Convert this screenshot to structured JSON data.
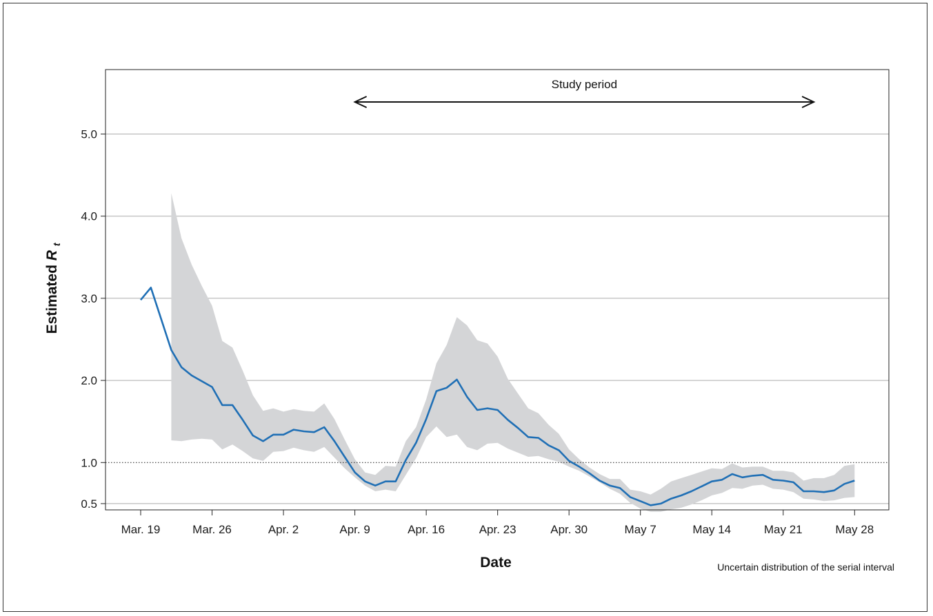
{
  "chart_data": {
    "type": "line",
    "xlabel": "Date",
    "ylabel": "Estimated",
    "ylabel_symbol": "R",
    "ylabel_subscript": "t",
    "x_start": "2020-03-19",
    "x_ticks": [
      "Mar. 19",
      "Mar. 26",
      "Apr. 2",
      "Apr. 9",
      "Apr. 16",
      "Apr. 23",
      "Apr. 30",
      "May 7",
      "May 14",
      "May 21",
      "May 28"
    ],
    "y_ticks": [
      "0.5",
      "1.0",
      "2.0",
      "3.0",
      "4.0",
      "5.0"
    ],
    "y_breaks_data": [
      0.5,
      1,
      2,
      3,
      4,
      5
    ],
    "ylim": [
      0,
      5.5
    ],
    "reference_line": 1.0,
    "grid": "horizontal",
    "annotation": {
      "label": "Study period",
      "from": "2020-04-09",
      "to": "2020-05-24"
    },
    "footnote": "Uncertain distribution of the serial interval",
    "colors": {
      "line": "#1f6fb5",
      "band": "#d4d5d7",
      "grid": "#aaaaaa",
      "reference": "#333333"
    },
    "series": [
      {
        "values": [
          2.98,
          3.13,
          2.75,
          2.37,
          2.16,
          2.06,
          1.99,
          1.92,
          1.7,
          1.7,
          1.52,
          1.33,
          1.26,
          1.34,
          1.34,
          1.4,
          1.38,
          1.37,
          1.43,
          1.26,
          1.07,
          0.88,
          0.77,
          0.72,
          0.77,
          0.77,
          1.03,
          1.24,
          1.53,
          1.87,
          1.91,
          2.01,
          1.8,
          1.64,
          1.66,
          1.64,
          1.52,
          1.42,
          1.31,
          1.3,
          1.21,
          1.15,
          1.02,
          0.95,
          0.87,
          0.78,
          0.72,
          0.69,
          0.58,
          0.53,
          0.48,
          0.5,
          0.56,
          0.6,
          0.65,
          0.71,
          0.77,
          0.79,
          0.86,
          0.82,
          0.84,
          0.85,
          0.79,
          0.78,
          0.76,
          0.65,
          0.65,
          0.64,
          0.66,
          0.74,
          0.78
        ],
        "lower": [
          null,
          null,
          null,
          1.27,
          1.26,
          1.28,
          1.29,
          1.28,
          1.16,
          1.22,
          1.14,
          1.05,
          1.02,
          1.13,
          1.14,
          1.18,
          1.15,
          1.13,
          1.19,
          1.06,
          0.93,
          0.82,
          0.72,
          0.65,
          0.67,
          0.65,
          0.85,
          1.05,
          1.31,
          1.44,
          1.31,
          1.34,
          1.19,
          1.15,
          1.23,
          1.24,
          1.17,
          1.12,
          1.07,
          1.08,
          1.04,
          1.01,
          0.95,
          0.9,
          0.83,
          0.76,
          0.68,
          0.62,
          0.51,
          0.44,
          0.4,
          0.4,
          0.43,
          0.45,
          0.49,
          0.54,
          0.6,
          0.63,
          0.69,
          0.68,
          0.72,
          0.73,
          0.68,
          0.67,
          0.64,
          0.56,
          0.55,
          0.53,
          0.54,
          0.57,
          0.58
        ],
        "upper": [
          null,
          null,
          null,
          4.28,
          3.73,
          3.41,
          3.15,
          2.91,
          2.48,
          2.4,
          2.12,
          1.82,
          1.63,
          1.66,
          1.62,
          1.65,
          1.63,
          1.62,
          1.72,
          1.53,
          1.28,
          1.04,
          0.88,
          0.85,
          0.96,
          0.95,
          1.26,
          1.43,
          1.77,
          2.21,
          2.43,
          2.77,
          2.67,
          2.49,
          2.45,
          2.29,
          2.02,
          1.84,
          1.66,
          1.6,
          1.46,
          1.35,
          1.16,
          1.04,
          0.94,
          0.86,
          0.8,
          0.8,
          0.67,
          0.65,
          0.61,
          0.68,
          0.77,
          0.81,
          0.85,
          0.89,
          0.93,
          0.92,
          0.99,
          0.94,
          0.95,
          0.95,
          0.9,
          0.9,
          0.88,
          0.78,
          0.81,
          0.81,
          0.85,
          0.96,
          0.98
        ]
      }
    ]
  }
}
